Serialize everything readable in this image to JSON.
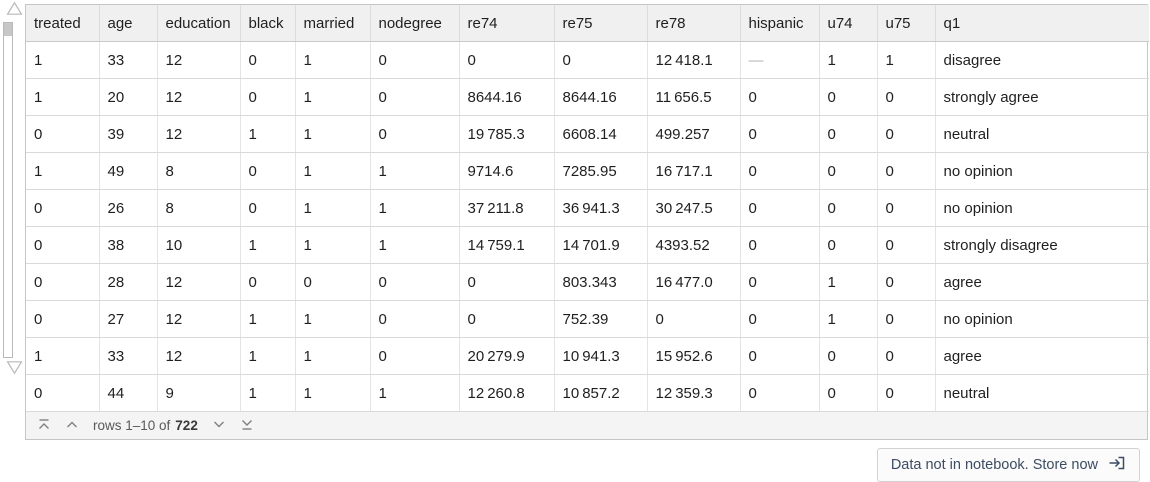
{
  "table": {
    "columns": [
      "treated",
      "age",
      "education",
      "black",
      "married",
      "nodegree",
      "re74",
      "re75",
      "re78",
      "hispanic",
      "u74",
      "u75",
      "q1"
    ],
    "rows": [
      [
        "1",
        "33",
        "12",
        "0",
        "1",
        "0",
        "0",
        "0",
        "12 418.1",
        "—",
        "1",
        "1",
        "disagree"
      ],
      [
        "1",
        "20",
        "12",
        "0",
        "1",
        "0",
        "8644.16",
        "8644.16",
        "11 656.5",
        "0",
        "0",
        "0",
        "strongly agree"
      ],
      [
        "0",
        "39",
        "12",
        "1",
        "1",
        "0",
        "19 785.3",
        "6608.14",
        "499.257",
        "0",
        "0",
        "0",
        "neutral"
      ],
      [
        "1",
        "49",
        "8",
        "0",
        "1",
        "1",
        "9714.6",
        "7285.95",
        "16 717.1",
        "0",
        "0",
        "0",
        "no opinion"
      ],
      [
        "0",
        "26",
        "8",
        "0",
        "1",
        "1",
        "37 211.8",
        "36 941.3",
        "30 247.5",
        "0",
        "0",
        "0",
        "no opinion"
      ],
      [
        "0",
        "38",
        "10",
        "1",
        "1",
        "1",
        "14 759.1",
        "14 701.9",
        "4393.52",
        "0",
        "0",
        "0",
        "strongly disagree"
      ],
      [
        "0",
        "28",
        "12",
        "0",
        "0",
        "0",
        "0",
        "803.343",
        "16 477.0",
        "0",
        "1",
        "0",
        "agree"
      ],
      [
        "0",
        "27",
        "12",
        "1",
        "1",
        "0",
        "0",
        "752.39",
        "0",
        "0",
        "1",
        "0",
        "no opinion"
      ],
      [
        "1",
        "33",
        "12",
        "1",
        "1",
        "0",
        "20 279.9",
        "10 941.3",
        "15 952.6",
        "0",
        "0",
        "0",
        "agree"
      ],
      [
        "0",
        "44",
        "9",
        "1",
        "1",
        "1",
        "12 260.8",
        "10 857.2",
        "12 359.3",
        "0",
        "0",
        "0",
        "neutral"
      ]
    ],
    "null_placeholder": "—"
  },
  "pager": {
    "rows_label_prefix": "rows 1–10 of",
    "total_rows": "722"
  },
  "store_banner": {
    "label": "Data not in notebook. Store now"
  },
  "icons": {
    "scroll_up": "triangle-up-outline",
    "scroll_down": "triangle-down-outline",
    "first_page": "chevron-up-with-bar",
    "prev_page": "chevron-up",
    "next_page": "chevron-down",
    "last_page": "chevron-down-with-bar",
    "store": "arrow-into-bracket"
  },
  "colors": {
    "header_bg": "#f0f0f0",
    "pager_bg": "#f4f4f4",
    "table_border": "#d9d9d9",
    "null_text": "#b3b3b3",
    "store_button_text": "#3d4c63"
  }
}
